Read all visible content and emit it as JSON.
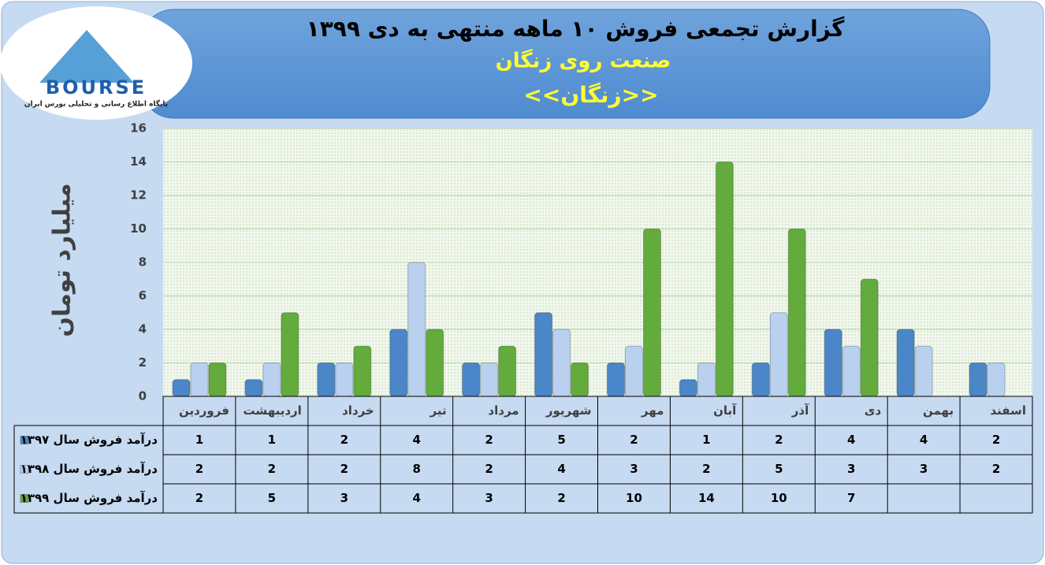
{
  "logo": {
    "brand": "BOURSE",
    "tagline": "پایگاه اطلاع رسانی و تحلیلی بورس ایران"
  },
  "chart_data": {
    "type": "bar",
    "title": "گزارش تجمعی فروش ۱۰ ماهه منتهی به دی ۱۳۹۹",
    "subtitle": "صنعت روی زنگان",
    "symbol": "<<زنگان>>",
    "y_label": "میلیارد تومان",
    "categories": [
      "فروردین",
      "اردیبهشت",
      "خرداد",
      "تیر",
      "مرداد",
      "شهریور",
      "مهر",
      "آبان",
      "آذر",
      "دی",
      "بهمن",
      "اسفند"
    ],
    "series": [
      {
        "name": "درآمد فروش سال ۱۳۹۷",
        "color": "#4a86c8",
        "values": [
          1,
          1,
          2,
          4,
          2,
          5,
          2,
          1,
          2,
          4,
          4,
          2
        ]
      },
      {
        "name": "درآمد فروش سال ۱۳۹۸",
        "color": "#b9d1ef",
        "values": [
          2,
          2,
          2,
          8,
          2,
          4,
          3,
          2,
          5,
          3,
          3,
          2
        ]
      },
      {
        "name": "درآمد فروش سال ۱۳۹۹",
        "color": "#62ab3c",
        "values": [
          2,
          5,
          3,
          4,
          3,
          2,
          10,
          14,
          10,
          7,
          null,
          null
        ]
      }
    ],
    "ylim": [
      0,
      16
    ],
    "yticks": [
      0,
      2,
      4,
      6,
      8,
      10,
      12,
      14,
      16
    ],
    "grid": true
  }
}
